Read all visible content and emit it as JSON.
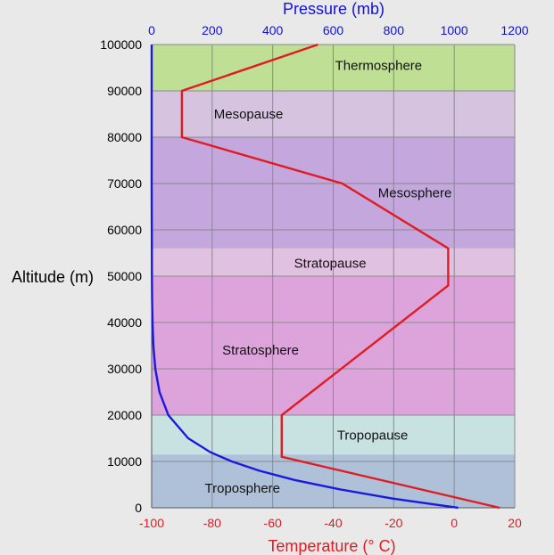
{
  "chart_data": {
    "type": "line",
    "title": "",
    "ylabel": "Altitude (m)",
    "ylim": [
      0,
      100000
    ],
    "y_ticks": [
      "0",
      "10000",
      "20000",
      "30000",
      "40000",
      "50000",
      "60000",
      "70000",
      "80000",
      "90000",
      "100000"
    ],
    "x_bottom": {
      "label": "Temperature (° C)",
      "lim": [
        -100,
        20
      ],
      "ticks": [
        "-100",
        "-80",
        "-60",
        "-40",
        "-20",
        "0",
        "20"
      ],
      "color": "#e11b22"
    },
    "x_top": {
      "label": "Pressure (mb)",
      "lim": [
        0,
        1200
      ],
      "ticks": [
        "0",
        "200",
        "400",
        "600",
        "800",
        "1000",
        "1200"
      ],
      "color": "#1212d4"
    },
    "grid": true,
    "bands": [
      {
        "name": "Troposphere",
        "y0": 0,
        "y1": 11500,
        "color": "#aec1d8"
      },
      {
        "name": "Tropopause",
        "y0": 11500,
        "y1": 20000,
        "color": "#c8e1e1"
      },
      {
        "name": "Stratosphere",
        "y0": 20000,
        "y1": 50000,
        "color": "#dda4dc"
      },
      {
        "name": "Stratopause",
        "y0": 50000,
        "y1": 56000,
        "color": "#e0c2e0"
      },
      {
        "name": "Mesosphere",
        "y0": 56000,
        "y1": 80000,
        "color": "#c3a7dd"
      },
      {
        "name": "Mesopause",
        "y0": 80000,
        "y1": 90000,
        "color": "#d5c3e0"
      },
      {
        "name": "Thermosphere",
        "y0": 90000,
        "y1": 100000,
        "color": "#bfdf95"
      }
    ],
    "series": [
      {
        "axis": "bottom",
        "color": "#e11b22",
        "points": [
          [
            15,
            0
          ],
          [
            -57,
            11000
          ],
          [
            -57,
            20000
          ],
          [
            -2,
            48000
          ],
          [
            -2,
            56000
          ],
          [
            -37,
            70000
          ],
          [
            -90,
            80000
          ],
          [
            -90,
            90000
          ],
          [
            -45,
            100000
          ]
        ]
      },
      {
        "axis": "top",
        "color": "#1a1adf",
        "points": [
          [
            1013,
            0
          ],
          [
            795,
            2000
          ],
          [
            620,
            4000
          ],
          [
            472,
            6000
          ],
          [
            356,
            8000
          ],
          [
            265,
            10000
          ],
          [
            194,
            12000
          ],
          [
            121,
            15000
          ],
          [
            55,
            20000
          ],
          [
            26,
            25000
          ],
          [
            12,
            30000
          ],
          [
            5.7,
            35000
          ],
          [
            2.9,
            40000
          ],
          [
            1.5,
            45000
          ],
          [
            0.8,
            50000
          ],
          [
            0.05,
            70000
          ],
          [
            0.01,
            100000
          ]
        ]
      }
    ]
  }
}
